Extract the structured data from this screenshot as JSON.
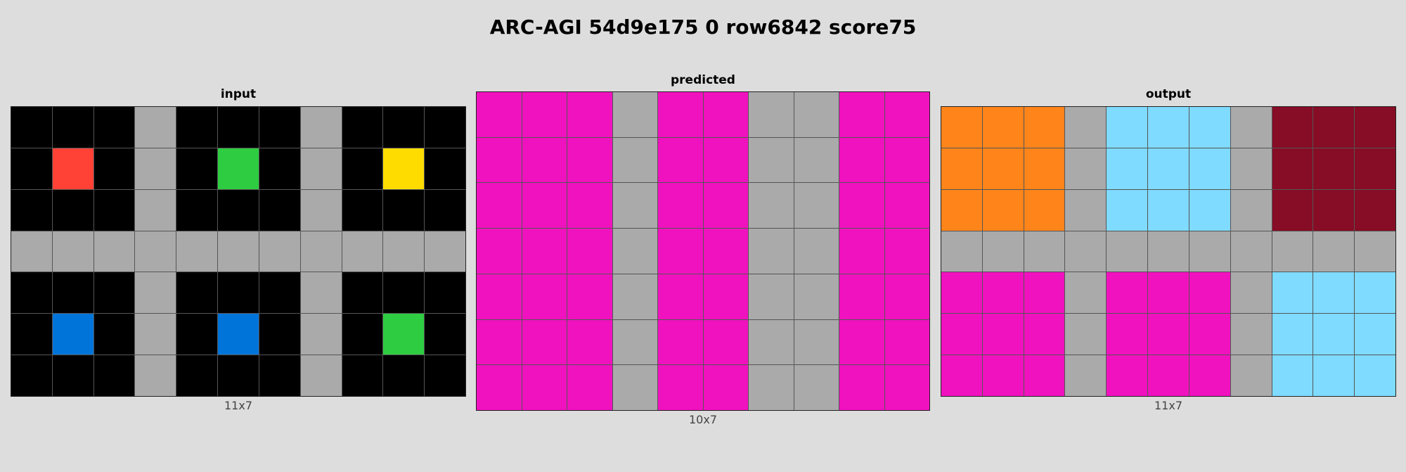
{
  "title": "ARC-AGI 54d9e175 0 row6842 score75",
  "palette": {
    "0": "#000000",
    "1": "#0074D9",
    "2": "#FF4136",
    "3": "#2ECC40",
    "4": "#FFDC00",
    "5": "#AAAAAA",
    "6": "#F012BE",
    "7": "#FF851B",
    "8": "#7FDBFF",
    "9": "#870C25"
  },
  "panels": [
    {
      "label": "input",
      "dims": "11x7",
      "grid": [
        [
          0,
          0,
          0,
          5,
          0,
          0,
          0,
          5,
          0,
          0,
          0
        ],
        [
          0,
          2,
          0,
          5,
          0,
          3,
          0,
          5,
          0,
          4,
          0
        ],
        [
          0,
          0,
          0,
          5,
          0,
          0,
          0,
          5,
          0,
          0,
          0
        ],
        [
          5,
          5,
          5,
          5,
          5,
          5,
          5,
          5,
          5,
          5,
          5
        ],
        [
          0,
          0,
          0,
          5,
          0,
          0,
          0,
          5,
          0,
          0,
          0
        ],
        [
          0,
          1,
          0,
          5,
          0,
          1,
          0,
          5,
          0,
          3,
          0
        ],
        [
          0,
          0,
          0,
          5,
          0,
          0,
          0,
          5,
          0,
          0,
          0
        ]
      ]
    },
    {
      "label": "predicted",
      "dims": "10x7",
      "grid": [
        [
          6,
          6,
          6,
          5,
          6,
          6,
          5,
          5,
          6,
          6
        ],
        [
          6,
          6,
          6,
          5,
          6,
          6,
          5,
          5,
          6,
          6
        ],
        [
          6,
          6,
          6,
          5,
          6,
          6,
          5,
          5,
          6,
          6
        ],
        [
          6,
          6,
          6,
          5,
          6,
          6,
          5,
          5,
          6,
          6
        ],
        [
          6,
          6,
          6,
          5,
          6,
          6,
          5,
          5,
          6,
          6
        ],
        [
          6,
          6,
          6,
          5,
          6,
          6,
          5,
          5,
          6,
          6
        ],
        [
          6,
          6,
          6,
          5,
          6,
          6,
          5,
          5,
          6,
          6
        ]
      ]
    },
    {
      "label": "output",
      "dims": "11x7",
      "grid": [
        [
          7,
          7,
          7,
          5,
          8,
          8,
          8,
          5,
          9,
          9,
          9
        ],
        [
          7,
          7,
          7,
          5,
          8,
          8,
          8,
          5,
          9,
          9,
          9
        ],
        [
          7,
          7,
          7,
          5,
          8,
          8,
          8,
          5,
          9,
          9,
          9
        ],
        [
          5,
          5,
          5,
          5,
          5,
          5,
          5,
          5,
          5,
          5,
          5
        ],
        [
          6,
          6,
          6,
          5,
          6,
          6,
          6,
          5,
          8,
          8,
          8
        ],
        [
          6,
          6,
          6,
          5,
          6,
          6,
          6,
          5,
          8,
          8,
          8
        ],
        [
          6,
          6,
          6,
          5,
          6,
          6,
          6,
          5,
          8,
          8,
          8
        ]
      ]
    }
  ]
}
